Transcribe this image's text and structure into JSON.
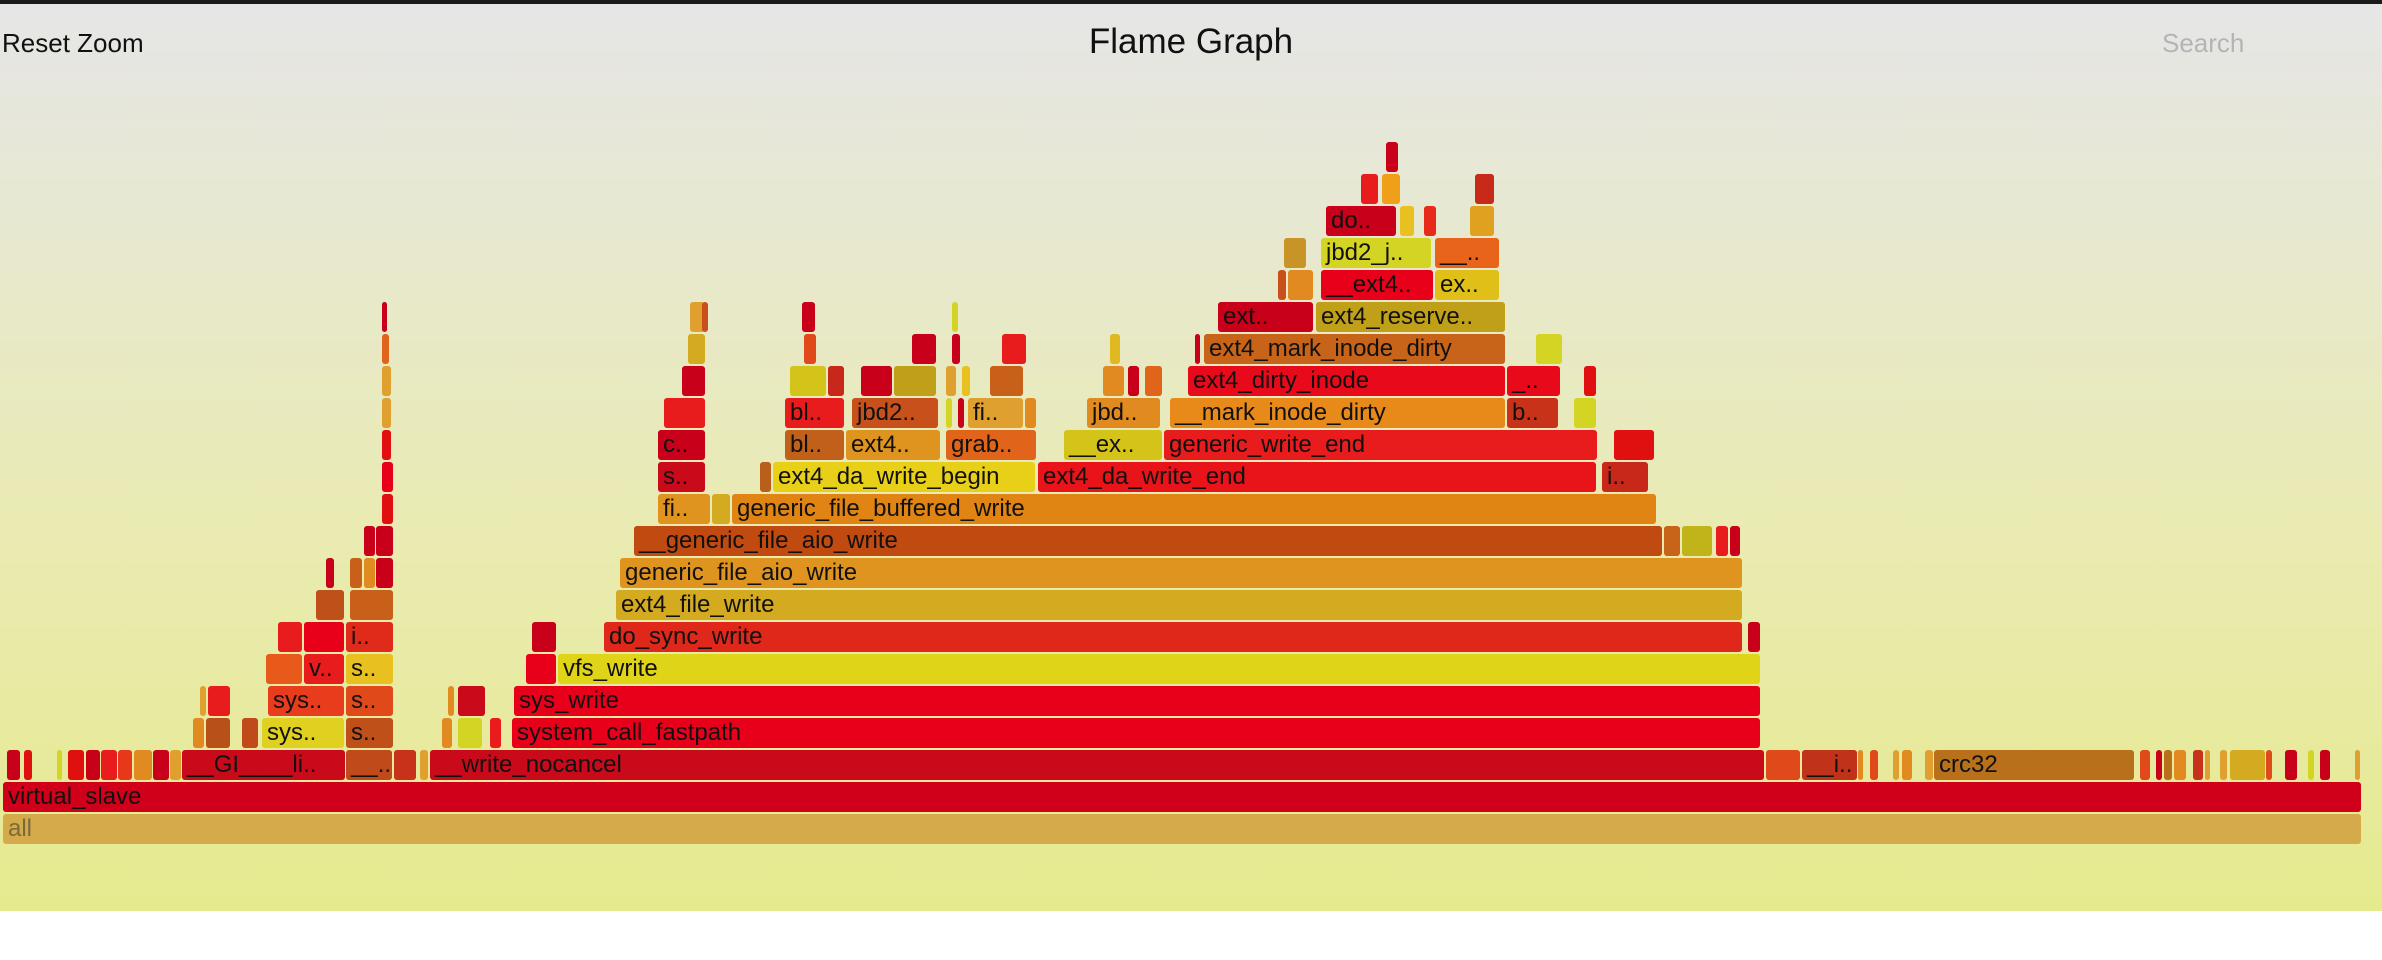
{
  "controls": {
    "reset_zoom": "Reset Zoom",
    "title": "Flame Graph",
    "search": "Search"
  },
  "colors": {
    "background_top": "#e6e6e6",
    "background_bottom": "#e6ea8e"
  },
  "frames": [
    {
      "label": "all",
      "level": 0,
      "start": 3,
      "end": 2361,
      "color": "#d4aa4a"
    },
    {
      "label": "virtual_slave",
      "level": 1,
      "start": 3,
      "end": 2361,
      "color": "#d1001a"
    },
    {
      "label": "",
      "level": 2,
      "start": 7,
      "end": 20,
      "color": "#c8001a"
    },
    {
      "label": "",
      "level": 2,
      "start": 24,
      "end": 32,
      "color": "#e01010"
    },
    {
      "label": "",
      "level": 2,
      "start": 57,
      "end": 62,
      "color": "#d4d424"
    },
    {
      "label": "",
      "level": 2,
      "start": 68,
      "end": 84,
      "color": "#e01010"
    },
    {
      "label": "",
      "level": 2,
      "start": 86,
      "end": 100,
      "color": "#c8001a"
    },
    {
      "label": "",
      "level": 2,
      "start": 101,
      "end": 117,
      "color": "#e81c1c"
    },
    {
      "label": "",
      "level": 2,
      "start": 118,
      "end": 132,
      "color": "#e8381c"
    },
    {
      "label": "",
      "level": 2,
      "start": 134,
      "end": 152,
      "color": "#e08a20"
    },
    {
      "label": "",
      "level": 2,
      "start": 153,
      "end": 169,
      "color": "#c8001a"
    },
    {
      "label": "",
      "level": 2,
      "start": 170,
      "end": 181,
      "color": "#e0a030"
    },
    {
      "label": "__GI____li..",
      "level": 2,
      "start": 182,
      "end": 345,
      "color": "#c80a1a"
    },
    {
      "label": "__..",
      "level": 2,
      "start": 346,
      "end": 392,
      "color": "#c04a1a"
    },
    {
      "label": "",
      "level": 2,
      "start": 394,
      "end": 416,
      "color": "#c8321a"
    },
    {
      "label": "",
      "level": 2,
      "start": 420,
      "end": 428,
      "color": "#e0a030"
    },
    {
      "label": "__write_nocancel",
      "level": 2,
      "start": 430,
      "end": 1764,
      "color": "#c80a1a"
    },
    {
      "label": "",
      "level": 2,
      "start": 1766,
      "end": 1800,
      "color": "#e04a1a"
    },
    {
      "label": "__i..",
      "level": 2,
      "start": 1802,
      "end": 1857,
      "color": "#c0321a"
    },
    {
      "label": "",
      "level": 2,
      "start": 1858,
      "end": 1863,
      "color": "#e08a20"
    },
    {
      "label": "",
      "level": 2,
      "start": 1870,
      "end": 1878,
      "color": "#e04a1a"
    },
    {
      "label": "",
      "level": 2,
      "start": 1893,
      "end": 1899,
      "color": "#e0a030"
    },
    {
      "label": "",
      "level": 2,
      "start": 1902,
      "end": 1912,
      "color": "#e08a20"
    },
    {
      "label": "",
      "level": 2,
      "start": 1925,
      "end": 1933,
      "color": "#e0a030"
    },
    {
      "label": "crc32",
      "level": 2,
      "start": 1934,
      "end": 2134,
      "color": "#b8701a"
    },
    {
      "label": "",
      "level": 2,
      "start": 2140,
      "end": 2150,
      "color": "#e04a1a"
    },
    {
      "label": "",
      "level": 2,
      "start": 2156,
      "end": 2162,
      "color": "#c8001a"
    },
    {
      "label": "",
      "level": 2,
      "start": 2164,
      "end": 2172,
      "color": "#b8701a"
    },
    {
      "label": "",
      "level": 2,
      "start": 2174,
      "end": 2186,
      "color": "#e08a20"
    },
    {
      "label": "",
      "level": 2,
      "start": 2193,
      "end": 2203,
      "color": "#c8321a"
    },
    {
      "label": "",
      "level": 2,
      "start": 2205,
      "end": 2210,
      "color": "#e0a030"
    },
    {
      "label": "",
      "level": 2,
      "start": 2220,
      "end": 2227,
      "color": "#e0a030"
    },
    {
      "label": "",
      "level": 2,
      "start": 2230,
      "end": 2265,
      "color": "#d4aa20"
    },
    {
      "label": "",
      "level": 2,
      "start": 2266,
      "end": 2272,
      "color": "#e04a1a"
    },
    {
      "label": "",
      "level": 2,
      "start": 2285,
      "end": 2297,
      "color": "#c8001a"
    },
    {
      "label": "",
      "level": 2,
      "start": 2308,
      "end": 2314,
      "color": "#d4d424"
    },
    {
      "label": "",
      "level": 2,
      "start": 2320,
      "end": 2330,
      "color": "#c8001a"
    },
    {
      "label": "",
      "level": 2,
      "start": 2355,
      "end": 2359,
      "color": "#e0a030"
    },
    {
      "label": "",
      "level": 3,
      "start": 193,
      "end": 204,
      "color": "#e08a20"
    },
    {
      "label": "",
      "level": 3,
      "start": 206,
      "end": 230,
      "color": "#b8501a"
    },
    {
      "label": "",
      "level": 3,
      "start": 242,
      "end": 258,
      "color": "#c04a1a"
    },
    {
      "label": "sys..",
      "level": 3,
      "start": 262,
      "end": 344,
      "color": "#e0d020"
    },
    {
      "label": "s..",
      "level": 3,
      "start": 346,
      "end": 393,
      "color": "#c0501a"
    },
    {
      "label": "",
      "level": 3,
      "start": 442,
      "end": 452,
      "color": "#e08a20"
    },
    {
      "label": "",
      "level": 3,
      "start": 458,
      "end": 482,
      "color": "#d4d424"
    },
    {
      "label": "",
      "level": 3,
      "start": 490,
      "end": 501,
      "color": "#e81c1c"
    },
    {
      "label": "system_call_fastpath",
      "level": 3,
      "start": 512,
      "end": 1760,
      "color": "#e8001a"
    },
    {
      "label": "",
      "level": 4,
      "start": 200,
      "end": 206,
      "color": "#e0a030"
    },
    {
      "label": "",
      "level": 4,
      "start": 208,
      "end": 230,
      "color": "#e81c1c"
    },
    {
      "label": "sys..",
      "level": 4,
      "start": 268,
      "end": 344,
      "color": "#e83c1c"
    },
    {
      "label": "s..",
      "level": 4,
      "start": 346,
      "end": 393,
      "color": "#e04a1a"
    },
    {
      "label": "",
      "level": 4,
      "start": 448,
      "end": 454,
      "color": "#e08a20"
    },
    {
      "label": "",
      "level": 4,
      "start": 458,
      "end": 485,
      "color": "#c80a1a"
    },
    {
      "label": "sys_write",
      "level": 4,
      "start": 514,
      "end": 1760,
      "color": "#e8001a"
    },
    {
      "label": "",
      "level": 5,
      "start": 266,
      "end": 302,
      "color": "#e85a1a"
    },
    {
      "label": "v..",
      "level": 5,
      "start": 304,
      "end": 344,
      "color": "#e81c1c"
    },
    {
      "label": "s..",
      "level": 5,
      "start": 346,
      "end": 393,
      "color": "#e8c020"
    },
    {
      "label": "",
      "level": 5,
      "start": 526,
      "end": 556,
      "color": "#e8001a"
    },
    {
      "label": "vfs_write",
      "level": 5,
      "start": 558,
      "end": 1760,
      "color": "#e0d418"
    },
    {
      "label": "",
      "level": 6,
      "start": 278,
      "end": 302,
      "color": "#e81c1c"
    },
    {
      "label": "",
      "level": 6,
      "start": 304,
      "end": 344,
      "color": "#e8001a"
    },
    {
      "label": "i..",
      "level": 6,
      "start": 346,
      "end": 393,
      "color": "#e02a1a"
    },
    {
      "label": "",
      "level": 6,
      "start": 532,
      "end": 556,
      "color": "#c8001a"
    },
    {
      "label": "do_sync_write",
      "level": 6,
      "start": 604,
      "end": 1742,
      "color": "#e0281a"
    },
    {
      "label": "",
      "level": 6,
      "start": 1748,
      "end": 1760,
      "color": "#c8001a"
    },
    {
      "label": "",
      "level": 7,
      "start": 316,
      "end": 344,
      "color": "#c0501a"
    },
    {
      "label": "",
      "level": 7,
      "start": 350,
      "end": 393,
      "color": "#c8601a"
    },
    {
      "label": "ext4_file_write",
      "level": 7,
      "start": 616,
      "end": 1742,
      "color": "#d4aa20"
    },
    {
      "label": "",
      "level": 8,
      "start": 326,
      "end": 334,
      "color": "#c8001a"
    },
    {
      "label": "",
      "level": 8,
      "start": 350,
      "end": 362,
      "color": "#c8601a"
    },
    {
      "label": "",
      "level": 8,
      "start": 364,
      "end": 375,
      "color": "#e08a20"
    },
    {
      "label": "",
      "level": 8,
      "start": 376,
      "end": 393,
      "color": "#c8001a"
    },
    {
      "label": "generic_file_aio_write",
      "level": 8,
      "start": 620,
      "end": 1742,
      "color": "#e09420"
    },
    {
      "label": "",
      "level": 9,
      "start": 364,
      "end": 375,
      "color": "#c8001a"
    },
    {
      "label": "",
      "level": 9,
      "start": 376,
      "end": 393,
      "color": "#c8001a"
    },
    {
      "label": "__generic_file_aio_write",
      "level": 9,
      "start": 634,
      "end": 1662,
      "color": "#c04a10"
    },
    {
      "label": "",
      "level": 9,
      "start": 1664,
      "end": 1680,
      "color": "#c8641a"
    },
    {
      "label": "",
      "level": 9,
      "start": 1682,
      "end": 1712,
      "color": "#c0b41a"
    },
    {
      "label": "",
      "level": 9,
      "start": 1716,
      "end": 1728,
      "color": "#e81c1c"
    },
    {
      "label": "",
      "level": 9,
      "start": 1730,
      "end": 1740,
      "color": "#c8001a"
    },
    {
      "label": "",
      "level": 10,
      "start": 382,
      "end": 393,
      "color": "#e01010"
    },
    {
      "label": "fi..",
      "level": 10,
      "start": 658,
      "end": 710,
      "color": "#e09420"
    },
    {
      "label": "",
      "level": 10,
      "start": 712,
      "end": 730,
      "color": "#d4aa20"
    },
    {
      "label": "generic_file_buffered_write",
      "level": 10,
      "start": 732,
      "end": 1656,
      "color": "#e08414"
    },
    {
      "label": "",
      "level": 11,
      "start": 382,
      "end": 393,
      "color": "#e8001a"
    },
    {
      "label": "s..",
      "level": 11,
      "start": 658,
      "end": 705,
      "color": "#c80a1a"
    },
    {
      "label": "",
      "level": 11,
      "start": 760,
      "end": 771,
      "color": "#b8601a"
    },
    {
      "label": "ext4_da_write_begin",
      "level": 11,
      "start": 773,
      "end": 1035,
      "color": "#e8d018"
    },
    {
      "label": "ext4_da_write_end",
      "level": 11,
      "start": 1038,
      "end": 1596,
      "color": "#e8141a"
    },
    {
      "label": "i..",
      "level": 11,
      "start": 1602,
      "end": 1648,
      "color": "#c8281a"
    },
    {
      "label": "",
      "level": 12,
      "start": 382,
      "end": 391,
      "color": "#e01010"
    },
    {
      "label": "c..",
      "level": 12,
      "start": 658,
      "end": 705,
      "color": "#c8001a"
    },
    {
      "label": "bl..",
      "level": 12,
      "start": 785,
      "end": 844,
      "color": "#c0601a"
    },
    {
      "label": "ext4..",
      "level": 12,
      "start": 846,
      "end": 940,
      "color": "#e09420"
    },
    {
      "label": "grab..",
      "level": 12,
      "start": 946,
      "end": 1036,
      "color": "#e0641a"
    },
    {
      "label": "__ex..",
      "level": 12,
      "start": 1064,
      "end": 1162,
      "color": "#d4c41a"
    },
    {
      "label": "generic_write_end",
      "level": 12,
      "start": 1164,
      "end": 1597,
      "color": "#e81c1c"
    },
    {
      "label": "",
      "level": 12,
      "start": 1614,
      "end": 1654,
      "color": "#e01010"
    },
    {
      "label": "",
      "level": 13,
      "start": 382,
      "end": 391,
      "color": "#e0a030"
    },
    {
      "label": "",
      "level": 13,
      "start": 664,
      "end": 705,
      "color": "#e81c1c"
    },
    {
      "label": "bl..",
      "level": 13,
      "start": 785,
      "end": 844,
      "color": "#e81c1c"
    },
    {
      "label": "jbd2..",
      "level": 13,
      "start": 852,
      "end": 938,
      "color": "#c8501a"
    },
    {
      "label": "",
      "level": 13,
      "start": 946,
      "end": 952,
      "color": "#d4d424"
    },
    {
      "label": "",
      "level": 13,
      "start": 958,
      "end": 964,
      "color": "#c8001a"
    },
    {
      "label": "fi..",
      "level": 13,
      "start": 968,
      "end": 1023,
      "color": "#e0a030"
    },
    {
      "label": "",
      "level": 13,
      "start": 1025,
      "end": 1036,
      "color": "#e08a20"
    },
    {
      "label": "jbd..",
      "level": 13,
      "start": 1087,
      "end": 1160,
      "color": "#e08a20"
    },
    {
      "label": "__mark_inode_dirty",
      "level": 13,
      "start": 1170,
      "end": 1505,
      "color": "#e88a1a"
    },
    {
      "label": "b..",
      "level": 13,
      "start": 1507,
      "end": 1558,
      "color": "#c83218"
    },
    {
      "label": "",
      "level": 13,
      "start": 1574,
      "end": 1596,
      "color": "#d4d424"
    },
    {
      "label": "",
      "level": 14,
      "start": 382,
      "end": 391,
      "color": "#e0a030"
    },
    {
      "label": "",
      "level": 14,
      "start": 682,
      "end": 705,
      "color": "#c8001a"
    },
    {
      "label": "",
      "level": 14,
      "start": 790,
      "end": 826,
      "color": "#d4c41a"
    },
    {
      "label": "",
      "level": 14,
      "start": 828,
      "end": 844,
      "color": "#c8281a"
    },
    {
      "label": "",
      "level": 14,
      "start": 861,
      "end": 892,
      "color": "#c8001a"
    },
    {
      "label": "",
      "level": 14,
      "start": 894,
      "end": 936,
      "color": "#c0a01a"
    },
    {
      "label": "",
      "level": 14,
      "start": 946,
      "end": 956,
      "color": "#e0a030"
    },
    {
      "label": "",
      "level": 14,
      "start": 962,
      "end": 970,
      "color": "#e8c020"
    },
    {
      "label": "",
      "level": 14,
      "start": 990,
      "end": 1023,
      "color": "#c8601a"
    },
    {
      "label": "",
      "level": 14,
      "start": 1103,
      "end": 1124,
      "color": "#e08a20"
    },
    {
      "label": "",
      "level": 14,
      "start": 1128,
      "end": 1139,
      "color": "#c8001a"
    },
    {
      "label": "",
      "level": 14,
      "start": 1145,
      "end": 1162,
      "color": "#e0641a"
    },
    {
      "label": "ext4_dirty_inode",
      "level": 14,
      "start": 1188,
      "end": 1505,
      "color": "#e80a1a"
    },
    {
      "label": "_..",
      "level": 14,
      "start": 1507,
      "end": 1560,
      "color": "#e80a1a"
    },
    {
      "label": "",
      "level": 14,
      "start": 1584,
      "end": 1596,
      "color": "#e01010"
    },
    {
      "label": "",
      "level": 15,
      "start": 382,
      "end": 389,
      "color": "#e0641a"
    },
    {
      "label": "",
      "level": 15,
      "start": 688,
      "end": 705,
      "color": "#d4aa20"
    },
    {
      "label": "",
      "level": 15,
      "start": 804,
      "end": 816,
      "color": "#e04a1a"
    },
    {
      "label": "",
      "level": 15,
      "start": 912,
      "end": 936,
      "color": "#c8001a"
    },
    {
      "label": "",
      "level": 15,
      "start": 952,
      "end": 960,
      "color": "#c8001a"
    },
    {
      "label": "",
      "level": 15,
      "start": 1002,
      "end": 1026,
      "color": "#e81c1c"
    },
    {
      "label": "",
      "level": 15,
      "start": 1110,
      "end": 1120,
      "color": "#e0b820"
    },
    {
      "label": "",
      "level": 15,
      "start": 1195,
      "end": 1200,
      "color": "#c8001a"
    },
    {
      "label": "ext4_mark_inode_dirty",
      "level": 15,
      "start": 1204,
      "end": 1505,
      "color": "#c8641a"
    },
    {
      "label": "",
      "level": 15,
      "start": 1536,
      "end": 1562,
      "color": "#d4d424"
    },
    {
      "label": "",
      "level": 16,
      "start": 382,
      "end": 387,
      "color": "#c8001a"
    },
    {
      "label": "",
      "level": 16,
      "start": 690,
      "end": 705,
      "color": "#e0a030"
    },
    {
      "label": "",
      "level": 16,
      "start": 702,
      "end": 708,
      "color": "#c8501a"
    },
    {
      "label": "",
      "level": 16,
      "start": 802,
      "end": 815,
      "color": "#c8001a"
    },
    {
      "label": "",
      "level": 16,
      "start": 952,
      "end": 958,
      "color": "#d4d424"
    },
    {
      "label": "ext..",
      "level": 16,
      "start": 1218,
      "end": 1313,
      "color": "#c8001a"
    },
    {
      "label": "ext4_reserve..",
      "level": 16,
      "start": 1316,
      "end": 1505,
      "color": "#c0a018"
    },
    {
      "label": "",
      "level": 17,
      "start": 1278,
      "end": 1286,
      "color": "#c8501a"
    },
    {
      "label": "",
      "level": 17,
      "start": 1288,
      "end": 1313,
      "color": "#e08a20"
    },
    {
      "label": "__ext4..",
      "level": 17,
      "start": 1321,
      "end": 1433,
      "color": "#e8001a"
    },
    {
      "label": "ex..",
      "level": 17,
      "start": 1435,
      "end": 1499,
      "color": "#e0c018"
    },
    {
      "label": "",
      "level": 18,
      "start": 1284,
      "end": 1306,
      "color": "#c89428"
    },
    {
      "label": "jbd2_j..",
      "level": 18,
      "start": 1321,
      "end": 1431,
      "color": "#d4d424"
    },
    {
      "label": "__..",
      "level": 18,
      "start": 1435,
      "end": 1499,
      "color": "#e8641a"
    },
    {
      "label": "do..",
      "level": 19,
      "start": 1326,
      "end": 1396,
      "color": "#c8001a"
    },
    {
      "label": "",
      "level": 19,
      "start": 1400,
      "end": 1414,
      "color": "#e8c020"
    },
    {
      "label": "",
      "level": 19,
      "start": 1424,
      "end": 1436,
      "color": "#e82a1a"
    },
    {
      "label": "",
      "level": 19,
      "start": 1470,
      "end": 1494,
      "color": "#e0a020"
    },
    {
      "label": "",
      "level": 20,
      "start": 1361,
      "end": 1378,
      "color": "#e81c1c"
    },
    {
      "label": "",
      "level": 20,
      "start": 1382,
      "end": 1400,
      "color": "#f0a018"
    },
    {
      "label": "",
      "level": 20,
      "start": 1475,
      "end": 1494,
      "color": "#c82a1a"
    },
    {
      "label": "",
      "level": 21,
      "start": 1386,
      "end": 1398,
      "color": "#c8001a"
    }
  ]
}
